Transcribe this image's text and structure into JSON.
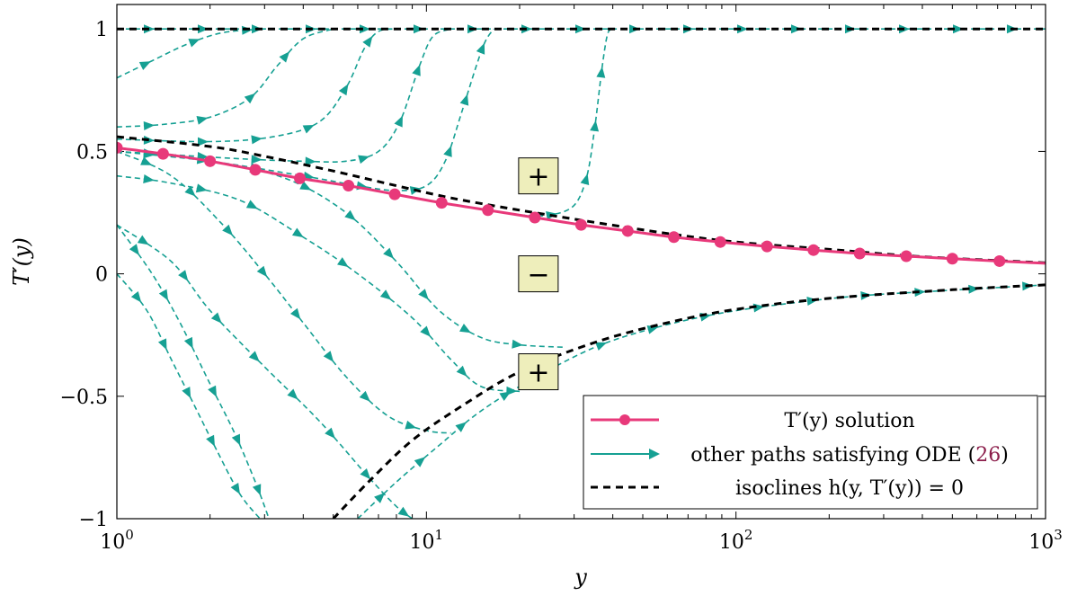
{
  "chart_data": {
    "type": "line",
    "xlabel": "y",
    "ylabel": "T′(y)",
    "xscale": "log",
    "xlim": [
      1,
      1000
    ],
    "ylim": [
      -1,
      1.1
    ],
    "x_tick_labels": [
      {
        "value": 1,
        "base": "10",
        "exp": "0"
      },
      {
        "value": 10,
        "base": "10",
        "exp": "1"
      },
      {
        "value": 100,
        "base": "10",
        "exp": "2"
      },
      {
        "value": 1000,
        "base": "10",
        "exp": "3"
      }
    ],
    "y_ticks": [
      {
        "value": -1,
        "label": "−1"
      },
      {
        "value": -0.5,
        "label": "−0.5"
      },
      {
        "value": 0,
        "label": "0"
      },
      {
        "value": 0.5,
        "label": "0.5"
      },
      {
        "value": 1,
        "label": "1"
      }
    ],
    "legend_position": "bottom-right",
    "colors": {
      "solution": "#e8397a",
      "paths": "#16a093",
      "isoclines": "#000000",
      "sign_box": "#eeeebb"
    },
    "series": [
      {
        "name": "T′(y) solution",
        "style": "solid-markers",
        "points": [
          [
            1,
            0.515
          ],
          [
            1.41,
            0.49
          ],
          [
            2,
            0.46
          ],
          [
            2.8,
            0.425
          ],
          [
            3.9,
            0.39
          ],
          [
            5.6,
            0.36
          ],
          [
            7.9,
            0.325
          ],
          [
            11.2,
            0.29
          ],
          [
            15.8,
            0.26
          ],
          [
            22.4,
            0.23
          ],
          [
            31.6,
            0.2
          ],
          [
            44.7,
            0.175
          ],
          [
            63,
            0.15
          ],
          [
            89,
            0.13
          ],
          [
            126,
            0.112
          ],
          [
            178,
            0.097
          ],
          [
            251,
            0.083
          ],
          [
            355,
            0.072
          ],
          [
            500,
            0.062
          ],
          [
            710,
            0.052
          ],
          [
            1000,
            0.043
          ]
        ]
      },
      {
        "name": "other paths satisfying ODE",
        "style": "dashed-arrows",
        "paths": [
          [
            [
              1,
              0.8
            ],
            [
              1.3,
              0.87
            ],
            [
              1.7,
              0.94
            ],
            [
              2.2,
              0.985
            ],
            [
              3,
              1.0
            ]
          ],
          [
            [
              1,
              0.6
            ],
            [
              1.4,
              0.61
            ],
            [
              2,
              0.64
            ],
            [
              2.7,
              0.72
            ],
            [
              3.3,
              0.85
            ],
            [
              4,
              0.96
            ],
            [
              5,
              1.0
            ]
          ],
          [
            [
              1,
              0.55
            ],
            [
              2,
              0.54
            ],
            [
              3.2,
              0.56
            ],
            [
              4.5,
              0.62
            ],
            [
              5.5,
              0.76
            ],
            [
              6.3,
              0.92
            ],
            [
              7,
              0.99
            ],
            [
              8,
              1.0
            ]
          ],
          [
            [
              1,
              0.5
            ],
            [
              2.5,
              0.47
            ],
            [
              4,
              0.46
            ],
            [
              5.5,
              0.46
            ],
            [
              7,
              0.5
            ],
            [
              8.2,
              0.62
            ],
            [
              9.5,
              0.85
            ],
            [
              10.5,
              0.97
            ],
            [
              12,
              1.0
            ]
          ],
          [
            [
              1,
              0.5
            ],
            [
              2,
              0.46
            ],
            [
              4,
              0.4
            ],
            [
              6,
              0.36
            ],
            [
              8,
              0.34
            ],
            [
              10,
              0.36
            ],
            [
              11.5,
              0.46
            ],
            [
              13,
              0.66
            ],
            [
              14.5,
              0.85
            ],
            [
              15.5,
              0.95
            ],
            [
              16.5,
              1.0
            ]
          ],
          [
            [
              20,
              0.24
            ],
            [
              25,
              0.24
            ],
            [
              30,
              0.28
            ],
            [
              33,
              0.4
            ],
            [
              35,
              0.6
            ],
            [
              37,
              0.85
            ],
            [
              38.5,
              0.98
            ],
            [
              40,
              1.0
            ]
          ],
          [
            [
              1,
              0.4
            ],
            [
              1.5,
              0.37
            ],
            [
              2.5,
              0.3
            ],
            [
              4,
              0.15
            ],
            [
              6,
              0.0
            ],
            [
              9,
              -0.18
            ],
            [
              12,
              -0.35
            ],
            [
              15,
              -0.46
            ],
            [
              20,
              -0.48
            ]
          ],
          [
            [
              1,
              0.5
            ],
            [
              2,
              0.46
            ],
            [
              3.5,
              0.39
            ],
            [
              5.5,
              0.25
            ],
            [
              8,
              0.05
            ],
            [
              11,
              -0.15
            ],
            [
              15,
              -0.26
            ],
            [
              20,
              -0.29
            ],
            [
              28,
              -0.3
            ]
          ],
          [
            [
              1,
              0.2
            ],
            [
              1.5,
              0.05
            ],
            [
              2,
              -0.15
            ],
            [
              3,
              -0.38
            ],
            [
              4.5,
              -0.6
            ],
            [
              6.5,
              -0.83
            ],
            [
              8,
              -0.95
            ],
            [
              9,
              -1.0
            ]
          ],
          [
            [
              1,
              0.5
            ],
            [
              1.5,
              0.4
            ],
            [
              2.2,
              0.2
            ],
            [
              3,
              0.0
            ],
            [
              4,
              -0.2
            ],
            [
              5.5,
              -0.42
            ],
            [
              7.5,
              -0.58
            ],
            [
              10,
              -0.64
            ],
            [
              12,
              -0.65
            ]
          ],
          [
            [
              1,
              0.2
            ],
            [
              1.3,
              0.0
            ],
            [
              1.6,
              -0.2
            ],
            [
              2,
              -0.45
            ],
            [
              2.4,
              -0.65
            ],
            [
              2.8,
              -0.85
            ],
            [
              3.1,
              -1.0
            ]
          ],
          [
            [
              1,
              0.0
            ],
            [
              1.25,
              -0.15
            ],
            [
              1.5,
              -0.35
            ],
            [
              1.8,
              -0.55
            ],
            [
              2.1,
              -0.72
            ],
            [
              2.5,
              -0.9
            ],
            [
              2.9,
              -1.0
            ]
          ],
          [
            [
              6,
              -1.0
            ],
            [
              8,
              -0.85
            ],
            [
              11,
              -0.7
            ],
            [
              15,
              -0.56
            ],
            [
              22,
              -0.43
            ],
            [
              35,
              -0.3
            ],
            [
              55,
              -0.22
            ],
            [
              90,
              -0.16
            ],
            [
              150,
              -0.12
            ],
            [
              250,
              -0.09
            ],
            [
              450,
              -0.07
            ],
            [
              1000,
              -0.045
            ]
          ],
          [
            [
              1,
              1.0
            ],
            [
              1000,
              1.0
            ]
          ]
        ]
      },
      {
        "name": "isoclines h(y, T′(y)) = 0",
        "style": "dashed",
        "paths": [
          [
            [
              1,
              0.56
            ],
            [
              2,
              0.52
            ],
            [
              3,
              0.48
            ],
            [
              5,
              0.42
            ],
            [
              8,
              0.36
            ],
            [
              12,
              0.31
            ],
            [
              20,
              0.26
            ],
            [
              35,
              0.21
            ],
            [
              60,
              0.165
            ],
            [
              100,
              0.13
            ],
            [
              200,
              0.1
            ],
            [
              400,
              0.07
            ],
            [
              1000,
              0.045
            ]
          ],
          [
            [
              5,
              -1.0
            ],
            [
              6.5,
              -0.85
            ],
            [
              9,
              -0.68
            ],
            [
              13,
              -0.54
            ],
            [
              20,
              -0.4
            ],
            [
              35,
              -0.28
            ],
            [
              60,
              -0.2
            ],
            [
              100,
              -0.145
            ],
            [
              200,
              -0.1
            ],
            [
              500,
              -0.065
            ],
            [
              1000,
              -0.045
            ]
          ],
          [
            [
              1,
              1.0
            ],
            [
              1000,
              1.0
            ]
          ]
        ]
      }
    ],
    "annotations": [
      {
        "label": "+",
        "x": 23,
        "y": 0.4
      },
      {
        "label": "−",
        "x": 23,
        "y": 0.0
      },
      {
        "label": "+",
        "x": 23,
        "y": -0.4
      }
    ],
    "legend": {
      "solution_label": "T′(y) solution",
      "paths_label": "other paths satisfying ODE (",
      "paths_ref": "26",
      "paths_close": ")",
      "isocline_label": "isoclines h(y, T′(y)) = 0"
    }
  }
}
